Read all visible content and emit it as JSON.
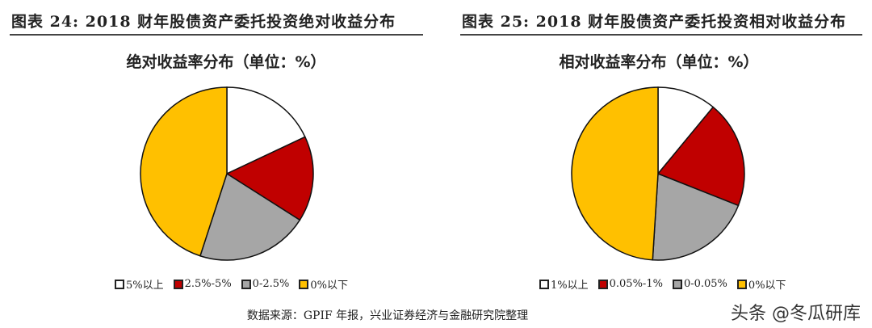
{
  "figures": [
    {
      "figure_title": "图表 24: 2018 财年股债资产委托投资绝对收益分布"
    },
    {
      "figure_title": "图表 25: 2018 财年股债资产委托投资相对收益分布"
    }
  ],
  "chart_data": [
    {
      "type": "pie",
      "title": "绝对收益率分布（单位：%）",
      "categories": [
        "5%以上",
        "2.5%-5%",
        "0-2.5%",
        "0%以下"
      ],
      "values": [
        18,
        16,
        21,
        45
      ],
      "colors": [
        "#ffffff",
        "#c00000",
        "#a6a6a6",
        "#ffc000"
      ],
      "legend": "bottom"
    },
    {
      "type": "pie",
      "title": "相对收益率分布（单位：%）",
      "categories": [
        "1%以上",
        "0.05%-1%",
        "0-0.05%",
        "0%以下"
      ],
      "values": [
        11,
        20,
        20,
        49
      ],
      "colors": [
        "#ffffff",
        "#c00000",
        "#a6a6a6",
        "#ffc000"
      ],
      "legend": "bottom"
    }
  ],
  "source": "数据来源：GPIF 年报，兴业证券经济与金融研究院整理",
  "watermark": "头条 @冬瓜研库"
}
